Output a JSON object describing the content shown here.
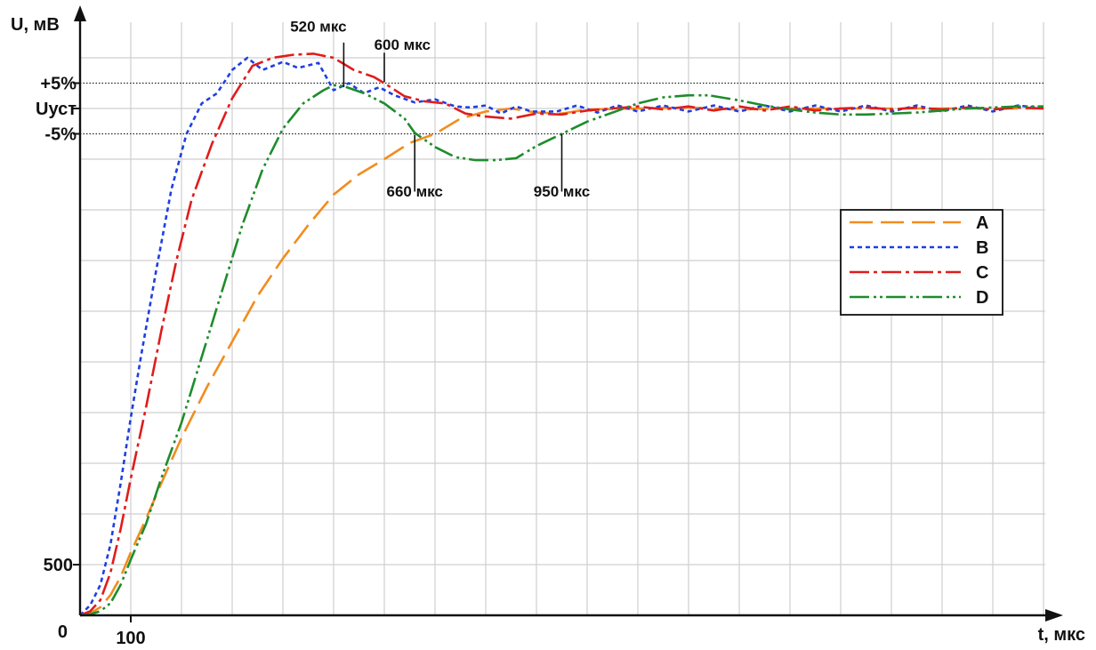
{
  "chart_data": {
    "type": "line",
    "xlabel": "t, мкс",
    "ylabel": "U, мВ",
    "origin_label": "0",
    "x_ticks": [
      {
        "value": 100,
        "label": "100"
      }
    ],
    "y_ticks": [
      {
        "value": 500,
        "label": "500"
      }
    ],
    "xlim": [
      0,
      1900
    ],
    "ylim": [
      0,
      5500
    ],
    "grid": true,
    "grid_step_x": 100,
    "grid_step_y": 500,
    "legend_position": "right",
    "reference_lines": [
      {
        "name": "plus5",
        "label": "+5%",
        "value": 5250,
        "dotted": true
      },
      {
        "name": "ust",
        "label": "Uуст",
        "value": 5000,
        "dotted": false
      },
      {
        "name": "minus5",
        "label": "-5%",
        "value": 4750,
        "dotted": true
      }
    ],
    "annotations": [
      {
        "label": "520 мкс",
        "x": 520,
        "y_from": 5210,
        "y_to": 5650,
        "text_y": 5760,
        "text_x": 470,
        "anchor": "middle"
      },
      {
        "label": "600 мкс",
        "x": 600,
        "y_from": 5260,
        "y_to": 5550,
        "text_y": 5580,
        "text_x": 580,
        "anchor": "start"
      },
      {
        "label": "660 мкс",
        "x": 660,
        "y_from": 4740,
        "y_to": 4180,
        "text_y": 4130,
        "text_x": 660,
        "anchor": "middle"
      },
      {
        "label": "950 мкс",
        "x": 950,
        "y_from": 4750,
        "y_to": 4180,
        "text_y": 4130,
        "text_x": 950,
        "anchor": "middle"
      }
    ],
    "series": [
      {
        "name": "A",
        "color": "#F28C1E",
        "dash": "26,9",
        "points": [
          [
            0,
            0
          ],
          [
            20,
            20
          ],
          [
            40,
            80
          ],
          [
            60,
            200
          ],
          [
            80,
            380
          ],
          [
            100,
            620
          ],
          [
            130,
            950
          ],
          [
            160,
            1300
          ],
          [
            200,
            1750
          ],
          [
            250,
            2250
          ],
          [
            300,
            2700
          ],
          [
            350,
            3150
          ],
          [
            400,
            3520
          ],
          [
            450,
            3850
          ],
          [
            500,
            4150
          ],
          [
            550,
            4350
          ],
          [
            600,
            4500
          ],
          [
            650,
            4660
          ],
          [
            700,
            4750
          ],
          [
            750,
            4900
          ],
          [
            800,
            4970
          ],
          [
            850,
            5000
          ],
          [
            900,
            4960
          ],
          [
            950,
            4950
          ],
          [
            1000,
            4990
          ],
          [
            1100,
            5000
          ],
          [
            1200,
            5010
          ],
          [
            1300,
            4990
          ],
          [
            1400,
            5000
          ],
          [
            1500,
            5000
          ],
          [
            1600,
            5000
          ],
          [
            1700,
            5000
          ],
          [
            1800,
            5000
          ],
          [
            1900,
            5000
          ]
        ]
      },
      {
        "name": "B",
        "color": "#1F3FE0",
        "dash": "5,4",
        "points": [
          [
            0,
            0
          ],
          [
            20,
            100
          ],
          [
            40,
            300
          ],
          [
            60,
            700
          ],
          [
            80,
            1300
          ],
          [
            100,
            1950
          ],
          [
            120,
            2550
          ],
          [
            150,
            3400
          ],
          [
            180,
            4200
          ],
          [
            210,
            4750
          ],
          [
            240,
            5050
          ],
          [
            270,
            5150
          ],
          [
            300,
            5380
          ],
          [
            330,
            5500
          ],
          [
            360,
            5380
          ],
          [
            400,
            5460
          ],
          [
            430,
            5400
          ],
          [
            470,
            5450
          ],
          [
            500,
            5180
          ],
          [
            530,
            5250
          ],
          [
            560,
            5150
          ],
          [
            590,
            5210
          ],
          [
            620,
            5130
          ],
          [
            660,
            5060
          ],
          [
            700,
            5090
          ],
          [
            740,
            5020
          ],
          [
            770,
            5010
          ],
          [
            800,
            5030
          ],
          [
            830,
            4950
          ],
          [
            860,
            5020
          ],
          [
            890,
            4970
          ],
          [
            940,
            4970
          ],
          [
            980,
            5030
          ],
          [
            1020,
            4960
          ],
          [
            1060,
            5030
          ],
          [
            1100,
            4970
          ],
          [
            1150,
            5030
          ],
          [
            1200,
            4970
          ],
          [
            1250,
            5030
          ],
          [
            1300,
            4970
          ],
          [
            1350,
            5030
          ],
          [
            1400,
            4970
          ],
          [
            1450,
            5030
          ],
          [
            1500,
            4970
          ],
          [
            1550,
            5030
          ],
          [
            1600,
            4970
          ],
          [
            1650,
            5030
          ],
          [
            1700,
            4970
          ],
          [
            1750,
            5030
          ],
          [
            1800,
            4970
          ],
          [
            1850,
            5030
          ],
          [
            1900,
            5000
          ]
        ]
      },
      {
        "name": "C",
        "color": "#E01C1C",
        "dash": "22,5,4,5",
        "points": [
          [
            0,
            0
          ],
          [
            20,
            40
          ],
          [
            40,
            150
          ],
          [
            60,
            420
          ],
          [
            80,
            850
          ],
          [
            100,
            1350
          ],
          [
            130,
            2050
          ],
          [
            160,
            2800
          ],
          [
            190,
            3500
          ],
          [
            220,
            4100
          ],
          [
            260,
            4650
          ],
          [
            300,
            5100
          ],
          [
            340,
            5420
          ],
          [
            380,
            5500
          ],
          [
            420,
            5530
          ],
          [
            460,
            5540
          ],
          [
            500,
            5500
          ],
          [
            540,
            5380
          ],
          [
            580,
            5310
          ],
          [
            600,
            5250
          ],
          [
            640,
            5120
          ],
          [
            680,
            5070
          ],
          [
            720,
            5050
          ],
          [
            760,
            4950
          ],
          [
            800,
            4920
          ],
          [
            850,
            4900
          ],
          [
            900,
            4950
          ],
          [
            950,
            4940
          ],
          [
            1000,
            4980
          ],
          [
            1050,
            5000
          ],
          [
            1100,
            5020
          ],
          [
            1150,
            4990
          ],
          [
            1200,
            5020
          ],
          [
            1250,
            4980
          ],
          [
            1300,
            5020
          ],
          [
            1350,
            4980
          ],
          [
            1400,
            5020
          ],
          [
            1450,
            4980
          ],
          [
            1500,
            5000
          ],
          [
            1550,
            5010
          ],
          [
            1600,
            4990
          ],
          [
            1650,
            5010
          ],
          [
            1700,
            4990
          ],
          [
            1750,
            5010
          ],
          [
            1800,
            4990
          ],
          [
            1850,
            5010
          ],
          [
            1900,
            5000
          ]
        ]
      },
      {
        "name": "D",
        "color": "#1E8C2C",
        "dash": "22,5,3,4,3,4",
        "points": [
          [
            0,
            0
          ],
          [
            20,
            10
          ],
          [
            40,
            40
          ],
          [
            60,
            120
          ],
          [
            80,
            300
          ],
          [
            100,
            550
          ],
          [
            130,
            900
          ],
          [
            160,
            1350
          ],
          [
            200,
            1900
          ],
          [
            240,
            2550
          ],
          [
            280,
            3200
          ],
          [
            320,
            3850
          ],
          [
            360,
            4400
          ],
          [
            400,
            4800
          ],
          [
            440,
            5050
          ],
          [
            480,
            5180
          ],
          [
            500,
            5230
          ],
          [
            520,
            5220
          ],
          [
            560,
            5150
          ],
          [
            600,
            5050
          ],
          [
            640,
            4900
          ],
          [
            660,
            4760
          ],
          [
            700,
            4620
          ],
          [
            740,
            4520
          ],
          [
            780,
            4490
          ],
          [
            820,
            4490
          ],
          [
            860,
            4510
          ],
          [
            900,
            4630
          ],
          [
            950,
            4750
          ],
          [
            1000,
            4870
          ],
          [
            1050,
            4960
          ],
          [
            1100,
            5050
          ],
          [
            1150,
            5110
          ],
          [
            1200,
            5130
          ],
          [
            1240,
            5130
          ],
          [
            1300,
            5080
          ],
          [
            1350,
            5030
          ],
          [
            1400,
            4990
          ],
          [
            1450,
            4960
          ],
          [
            1500,
            4940
          ],
          [
            1550,
            4940
          ],
          [
            1600,
            4950
          ],
          [
            1650,
            4960
          ],
          [
            1700,
            4980
          ],
          [
            1750,
            5000
          ],
          [
            1800,
            5010
          ],
          [
            1850,
            5020
          ],
          [
            1900,
            5020
          ]
        ]
      }
    ]
  }
}
